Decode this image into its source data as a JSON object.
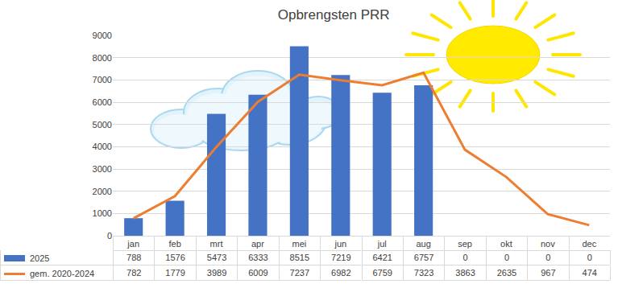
{
  "chart_data": {
    "type": "bar",
    "title": "Opbrengsten PRR",
    "categories": [
      "jan",
      "feb",
      "mrt",
      "apr",
      "mei",
      "jun",
      "jul",
      "aug",
      "sep",
      "okt",
      "nov",
      "dec"
    ],
    "series": [
      {
        "name": "2025",
        "type": "bar",
        "color": "#4472c4",
        "values": [
          788,
          1576,
          5473,
          6333,
          8515,
          7219,
          6421,
          6757,
          0,
          0,
          0,
          0
        ]
      },
      {
        "name": "gem. 2020-2024",
        "type": "line",
        "color": "#ed7d31",
        "values": [
          782,
          1779,
          3989,
          6009,
          7237,
          6982,
          6759,
          7323,
          3863,
          2635,
          967,
          474
        ]
      }
    ],
    "ylim": [
      0,
      9000
    ],
    "yticks": [
      0,
      1000,
      2000,
      3000,
      4000,
      5000,
      6000,
      7000,
      8000,
      9000
    ],
    "grid": true
  }
}
